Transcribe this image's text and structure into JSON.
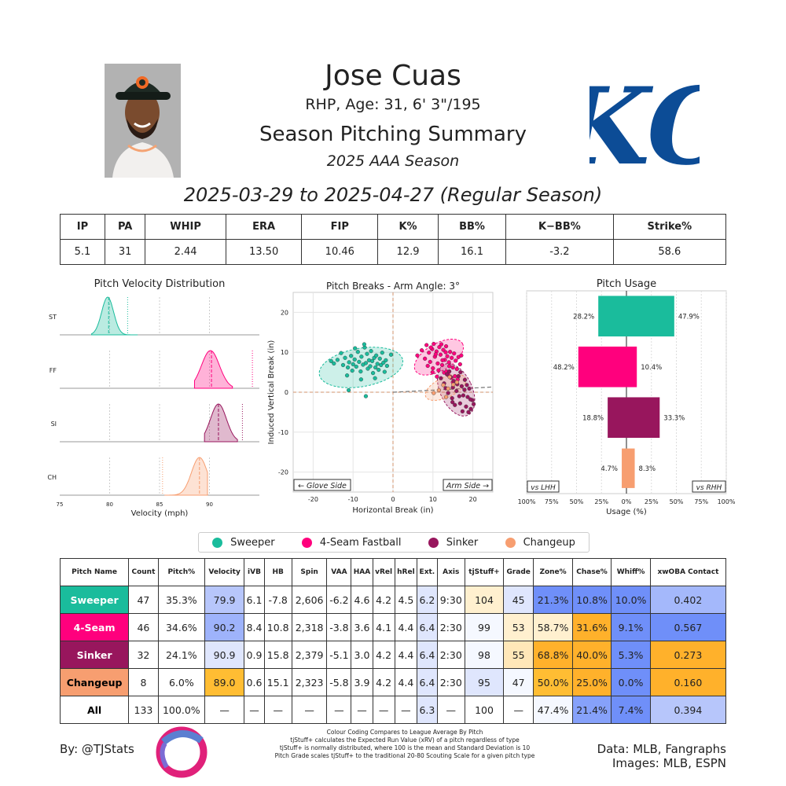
{
  "header": {
    "name": "Jose Cuas",
    "bio": "RHP, Age: 31, 6' 3\"/195",
    "title": "Season Pitching Summary",
    "season": "2025 AAA Season",
    "date_range": "2025-03-29 to 2025-04-27 (Regular Season)"
  },
  "logo_text": "KC",
  "summary": {
    "headers": [
      "IP",
      "PA",
      "WHIP",
      "ERA",
      "FIP",
      "K%",
      "BB%",
      "K−BB%",
      "Strike%"
    ],
    "values": [
      "5.1",
      "31",
      "2.44",
      "13.50",
      "10.46",
      "12.9",
      "16.1",
      "-3.2",
      "58.6"
    ]
  },
  "colors": {
    "Sweeper": "#1abc9c",
    "4-Seam Fastball": "#ff007d",
    "Sinker": "#98165d",
    "Changeup": "#f79e70"
  },
  "legend": [
    "Sweeper",
    "4-Seam Fastball",
    "Sinker",
    "Changeup"
  ],
  "chart_data": [
    {
      "type": "area",
      "title": "Pitch Velocity Distribution",
      "xlabel": "Velocity (mph)",
      "xlim": [
        75,
        95
      ],
      "x_ticks": [
        "75",
        "80",
        "85",
        "90"
      ],
      "rows": [
        {
          "label": "ST",
          "pitch": "Sweeper",
          "range": [
            78.2,
            82.8
          ],
          "peak": 79.8,
          "spread": 0.6,
          "mean": 79.9,
          "league": 81.8
        },
        {
          "label": "FF",
          "pitch": "4-Seam Fastball",
          "range": [
            88.5,
            92.3
          ],
          "peak": 90.1,
          "spread": 0.9,
          "mean": 90.2,
          "league": 94.3
        },
        {
          "label": "SI",
          "pitch": "Sinker",
          "range": [
            89.5,
            92.8
          ],
          "peak": 90.9,
          "spread": 0.8,
          "mean": 90.9,
          "league": 93.3
        },
        {
          "label": "CH",
          "pitch": "Changeup",
          "range": [
            85.5,
            89.8
          ],
          "peak": 89.0,
          "spread": 0.8,
          "mean": 89.0,
          "league": 85.3
        }
      ]
    },
    {
      "type": "scatter",
      "title": "Pitch Breaks - Arm Angle: 3°",
      "xlabel": "Horizontal Break (in)",
      "ylabel": "Induced Vertical Break (in)",
      "xlim": [
        -25,
        25
      ],
      "ylim": [
        -25,
        25
      ],
      "x_ticks": [
        "-20",
        "-10",
        "0",
        "10",
        "20"
      ],
      "y_ticks": [
        "20",
        "10",
        "0",
        "-10",
        "-20"
      ],
      "glove_side_label": "← Glove Side",
      "arm_side_label": "Arm Side →",
      "arm_angle_deg": 3,
      "series": [
        {
          "name": "Sweeper",
          "points": [
            [
              -15.5,
              7.8
            ],
            [
              -14.8,
              7.2
            ],
            [
              -13.9,
              8.1
            ],
            [
              -12.5,
              6.8
            ],
            [
              -12.0,
              8.6
            ],
            [
              -11.3,
              6.2
            ],
            [
              -11.0,
              7.5
            ],
            [
              -10.5,
              9.1
            ],
            [
              -10.2,
              5.4
            ],
            [
              -10.0,
              7.0
            ],
            [
              -9.6,
              8.2
            ],
            [
              -9.2,
              6.4
            ],
            [
              -8.8,
              10.1
            ],
            [
              -8.5,
              7.6
            ],
            [
              -8.1,
              5.2
            ],
            [
              -7.9,
              8.9
            ],
            [
              -7.5,
              6.9
            ],
            [
              -7.1,
              11.2
            ],
            [
              -6.8,
              7.3
            ],
            [
              -6.5,
              9.6
            ],
            [
              -6.3,
              5.9
            ],
            [
              -6.0,
              8.0
            ],
            [
              -5.7,
              6.5
            ],
            [
              -5.5,
              10.3
            ],
            [
              -5.2,
              7.8
            ],
            [
              -5.0,
              4.8
            ],
            [
              -4.7,
              8.6
            ],
            [
              -4.4,
              6.2
            ],
            [
              -4.2,
              9.2
            ],
            [
              -3.9,
              7.1
            ],
            [
              -3.6,
              5.6
            ],
            [
              -3.3,
              8.4
            ],
            [
              -3.0,
              6.8
            ],
            [
              -2.7,
              9.9
            ],
            [
              -2.4,
              7.4
            ],
            [
              -2.1,
              5.1
            ],
            [
              -1.8,
              8.0
            ],
            [
              -1.5,
              6.6
            ],
            [
              -0.5,
              9.4
            ],
            [
              -9.5,
              11.0
            ],
            [
              -11.5,
              4.2
            ],
            [
              -13.0,
              9.8
            ],
            [
              -6.8,
              -1.0
            ],
            [
              -11.1,
              0.5
            ],
            [
              -8.0,
              3.2
            ],
            [
              -4.5,
              3.5
            ],
            [
              -7.2,
              12.0
            ]
          ]
        },
        {
          "name": "4-Seam Fastball",
          "points": [
            [
              6.1,
              9.2
            ],
            [
              7.2,
              10.5
            ],
            [
              8.0,
              8.4
            ],
            [
              8.4,
              11.8
            ],
            [
              9.0,
              9.9
            ],
            [
              9.3,
              7.6
            ],
            [
              9.8,
              10.8
            ],
            [
              10.2,
              12.1
            ],
            [
              10.5,
              8.9
            ],
            [
              10.9,
              10.2
            ],
            [
              11.2,
              7.2
            ],
            [
              11.6,
              11.3
            ],
            [
              11.9,
              9.4
            ],
            [
              12.3,
              6.8
            ],
            [
              12.6,
              10.6
            ],
            [
              13.0,
              8.1
            ],
            [
              13.3,
              11.5
            ],
            [
              13.6,
              9.0
            ],
            [
              14.0,
              7.5
            ],
            [
              14.3,
              10.1
            ],
            [
              14.7,
              8.6
            ],
            [
              15.0,
              6.2
            ],
            [
              15.3,
              9.7
            ],
            [
              15.7,
              7.9
            ],
            [
              16.0,
              5.8
            ],
            [
              16.4,
              8.8
            ],
            [
              16.8,
              7.0
            ],
            [
              17.1,
              9.2
            ],
            [
              10.0,
              6.0
            ],
            [
              11.4,
              5.5
            ],
            [
              12.8,
              4.9
            ],
            [
              13.9,
              4.3
            ],
            [
              15.5,
              4.0
            ],
            [
              12.1,
              12.0
            ],
            [
              9.5,
              11.2
            ],
            [
              13.4,
              5.2
            ],
            [
              14.6,
              3.6
            ],
            [
              8.7,
              6.6
            ],
            [
              16.2,
              3.2
            ],
            [
              11.0,
              3.9
            ],
            [
              15.0,
              2.5
            ],
            [
              10.7,
              9.5
            ],
            [
              12.4,
              8.0
            ],
            [
              14.1,
              6.5
            ],
            [
              9.9,
              5.0
            ],
            [
              13.2,
              10.0
            ]
          ]
        },
        {
          "name": "Sinker",
          "points": [
            [
              12.0,
              3.5
            ],
            [
              13.2,
              1.0
            ],
            [
              14.1,
              5.2
            ],
            [
              14.8,
              -1.5
            ],
            [
              15.2,
              2.8
            ],
            [
              15.9,
              0.3
            ],
            [
              16.4,
              4.0
            ],
            [
              16.8,
              -2.8
            ],
            [
              17.2,
              1.5
            ],
            [
              17.6,
              -0.8
            ],
            [
              18.0,
              3.1
            ],
            [
              18.3,
              -3.6
            ],
            [
              18.7,
              -1.2
            ],
            [
              19.1,
              0.9
            ],
            [
              19.5,
              -4.2
            ],
            [
              19.9,
              -2.0
            ],
            [
              20.2,
              -3.0
            ],
            [
              13.8,
              -0.2
            ],
            [
              15.5,
              -3.2
            ],
            [
              16.1,
              2.0
            ],
            [
              17.4,
              -4.8
            ],
            [
              18.9,
              -5.0
            ],
            [
              14.4,
              3.8
            ],
            [
              12.8,
              2.2
            ],
            [
              16.6,
              -1.0
            ],
            [
              17.9,
              0.6
            ],
            [
              15.0,
              1.2
            ],
            [
              19.4,
              -1.8
            ],
            [
              13.5,
              4.5
            ],
            [
              18.5,
              1.8
            ],
            [
              16.9,
              5.0
            ],
            [
              14.9,
              -2.5
            ]
          ]
        },
        {
          "name": "Changeup",
          "points": [
            [
              10.2,
              -0.2
            ],
            [
              11.5,
              0.5
            ],
            [
              12.6,
              1.8
            ],
            [
              13.3,
              -1.2
            ],
            [
              14.2,
              3.8
            ],
            [
              15.1,
              1.9
            ],
            [
              16.0,
              2.5
            ],
            [
              13.8,
              0.9
            ]
          ]
        }
      ],
      "ellipses": [
        {
          "pitch": "Sweeper",
          "cx": -8,
          "cy": 6.2,
          "rx": 10.6,
          "ry": 4.8,
          "angle": -10
        },
        {
          "pitch": "4-Seam Fastball",
          "cx": 11.5,
          "cy": 8.8,
          "rx": 6.8,
          "ry": 3.4,
          "angle": -30
        },
        {
          "pitch": "Sinker",
          "cx": 15.8,
          "cy": 0.6,
          "rx": 4.0,
          "ry": 7.0,
          "angle": -25
        },
        {
          "pitch": "Changeup",
          "cx": 13.2,
          "cy": 1.2,
          "rx": 5.5,
          "ry": 2.5,
          "angle": -25
        }
      ]
    },
    {
      "type": "bar",
      "title": "Pitch Usage",
      "xlabel": "Usage (%)",
      "xlim": [
        -100,
        100
      ],
      "x_ticks": [
        "100%",
        "75%",
        "50%",
        "25%",
        "0%",
        "25%",
        "50%",
        "75%",
        "100%"
      ],
      "lhh_label": "vs LHH",
      "rhh_label": "vs RHH",
      "series": [
        {
          "name": "Sweeper",
          "lhh": 28.2,
          "rhh": 47.9,
          "lhh_label": "28.2%",
          "rhh_label": "47.9%"
        },
        {
          "name": "4-Seam Fastball",
          "lhh": 48.2,
          "rhh": 10.4,
          "lhh_label": "48.2%",
          "rhh_label": "10.4%"
        },
        {
          "name": "Sinker",
          "lhh": 18.8,
          "rhh": 33.3,
          "lhh_label": "18.8%",
          "rhh_label": "33.3%"
        },
        {
          "name": "Changeup",
          "lhh": 4.7,
          "rhh": 8.3,
          "lhh_label": "4.7%",
          "rhh_label": "8.3%"
        }
      ]
    }
  ],
  "pitch_table": {
    "headers": [
      "Pitch Name",
      "Count",
      "Pitch%",
      "Velocity",
      "iVB",
      "HB",
      "Spin",
      "VAA",
      "HAA",
      "vRel",
      "hRel",
      "Ext.",
      "Axis",
      "tjStuff+",
      "Grade",
      "Zone%",
      "Chase%",
      "Whiff%",
      "xwOBA Contact"
    ],
    "rows": [
      {
        "name": "Sweeper",
        "name_bg": "#1abc9c",
        "name_color": "#ffffff",
        "cells": [
          "47",
          "35.3%",
          "79.9",
          "6.1",
          "-7.8",
          "2,606",
          "-6.2",
          "4.6",
          "4.2",
          "4.5",
          "6.2",
          "9:30",
          "104",
          "45",
          "21.3%",
          "10.8%",
          "10.0%",
          "0.402"
        ],
        "bgs": [
          "",
          "",
          "#b7c6fb",
          "",
          "",
          "",
          "",
          "",
          "",
          "",
          "#dfe6fd",
          "",
          "#fff0cf",
          "#dfe6fd",
          "#6f8ff9",
          "#6f8ff9",
          "#6f8ff9",
          "#a4b8fb"
        ]
      },
      {
        "name": "4-Seam",
        "name_bg": "#ff007d",
        "name_color": "#ffffff",
        "cells": [
          "46",
          "34.6%",
          "90.2",
          "8.4",
          "10.8",
          "2,318",
          "-3.8",
          "3.6",
          "4.1",
          "4.4",
          "6.4",
          "2:30",
          "99",
          "53",
          "58.7%",
          "31.6%",
          "9.1%",
          "0.567"
        ],
        "bgs": [
          "",
          "",
          "#9eb3fb",
          "",
          "",
          "",
          "",
          "",
          "",
          "",
          "#dfe6fd",
          "",
          "#f5f8ff",
          "#fff0cf",
          "#fff0cf",
          "#ffb12b",
          "#6f8ff9",
          "#6f8ff9"
        ]
      },
      {
        "name": "Sinker",
        "name_bg": "#98165d",
        "name_color": "#ffffff",
        "cells": [
          "32",
          "24.1%",
          "90.9",
          "0.9",
          "15.8",
          "2,379",
          "-5.1",
          "3.0",
          "4.2",
          "4.4",
          "6.4",
          "2:30",
          "98",
          "55",
          "68.8%",
          "40.0%",
          "5.3%",
          "0.273"
        ],
        "bgs": [
          "",
          "",
          "#dfe6fd",
          "",
          "",
          "",
          "",
          "",
          "",
          "",
          "#dfe6fd",
          "",
          "#f5f8ff",
          "#ffe7b8",
          "#ffb12b",
          "#ffb12b",
          "#6f8ff9",
          "#ffb12b"
        ]
      },
      {
        "name": "Changeup",
        "name_bg": "#f79e70",
        "name_color": "#000000",
        "cells": [
          "8",
          "6.0%",
          "89.0",
          "0.6",
          "15.1",
          "2,323",
          "-5.8",
          "3.9",
          "4.2",
          "4.4",
          "6.4",
          "2:30",
          "95",
          "47",
          "50.0%",
          "25.0%",
          "0.0%",
          "0.160"
        ],
        "bgs": [
          "",
          "",
          "#ffbd33",
          "",
          "",
          "",
          "",
          "",
          "",
          "",
          "#dfe6fd",
          "",
          "#dfe6fd",
          "#f5f8ff",
          "#ffbd33",
          "#ffb12b",
          "#6f8ff9",
          "#ffb12b"
        ]
      },
      {
        "name": "All",
        "name_bg": "#ffffff",
        "name_color": "#000000",
        "cells": [
          "133",
          "100.0%",
          "—",
          "—",
          "—",
          "—",
          "—",
          "—",
          "—",
          "—",
          "6.3",
          "—",
          "100",
          "—",
          "47.4%",
          "21.4%",
          "7.4%",
          "0.394"
        ],
        "bgs": [
          "",
          "",
          "",
          "",
          "",
          "",
          "",
          "",
          "",
          "",
          "#dfe6fd",
          "",
          "",
          "",
          "#f5f8ff",
          "#86a1fa",
          "#6f8ff9",
          "#b7c6fb"
        ]
      }
    ]
  },
  "footer": {
    "byline": "By: @TJStats",
    "notes": [
      "Colour Coding Compares to League Average By Pitch",
      "tjStuff+ calculates the Expected Run Value (xRV) of a pitch regardless of type",
      "tjStuff+ is normally distributed, where 100 is the mean and Standard Deviation is 10",
      "Pitch Grade scales tjStuff+ to the traditional 20-80 Scouting Scale for a given pitch type"
    ],
    "data_line": "Data: MLB, Fangraphs",
    "images_line": "Images: MLB, ESPN"
  }
}
